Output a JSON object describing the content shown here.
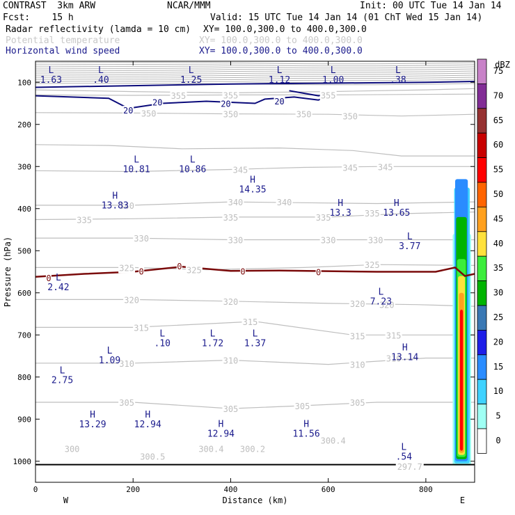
{
  "header": {
    "model": "CONTRAST  3km ARW",
    "org": "NCAR/MMM",
    "init": "Init: 00 UTC Tue 14 Jan 14",
    "fcst": "Fcst:    15 h",
    "valid": "Valid: 15 UTC Tue 14 Jan 14 (01 ChT Wed 15 Jan 14)",
    "field1": "Radar reflectivity (lamda = 10 cm)",
    "field1_xy": "XY= 100.0,300.0 to 400.0,300.0",
    "field2": "Potential temperature",
    "field2_xy": "XY= 100.0,300.0 to 400.0,300.0",
    "field3": "Horizontal wind speed",
    "field3_xy": "XY= 100.0,300.0 to 400.0,300.0"
  },
  "chart_data": {
    "type": "cross-section",
    "xlabel": "Distance (km)",
    "ylabel": "Pressure (hPa)",
    "x_ticks": [
      0,
      200,
      400,
      600,
      800
    ],
    "x_range": [
      0,
      900
    ],
    "y_ticks": [
      100,
      200,
      300,
      400,
      500,
      600,
      700,
      800,
      900,
      1000
    ],
    "y_range": [
      50,
      1050
    ],
    "west_label": "W",
    "east_label": "E",
    "colorbar": {
      "unit": "dBZ",
      "levels": [
        0,
        5,
        10,
        15,
        20,
        25,
        30,
        35,
        40,
        45,
        50,
        55,
        60,
        65,
        70,
        75
      ],
      "colors": [
        "#ffffff",
        "#9ffff4",
        "#3fd2ff",
        "#2a8cff",
        "#1e1ee8",
        "#3a78b4",
        "#00b400",
        "#3ced3c",
        "#ffe13c",
        "#ffa01e",
        "#ff6400",
        "#ff0000",
        "#c80000",
        "#963232",
        "#822d96",
        "#c882c8"
      ]
    },
    "theta_labels": [
      {
        "text": "355",
        "x": 293,
        "p": 131
      },
      {
        "text": "355",
        "x": 400,
        "p": 130
      },
      {
        "text": "355",
        "x": 600,
        "p": 130
      },
      {
        "text": "350",
        "x": 232,
        "p": 173
      },
      {
        "text": "350",
        "x": 400,
        "p": 175
      },
      {
        "text": "350",
        "x": 550,
        "p": 175
      },
      {
        "text": "350",
        "x": 645,
        "p": 180
      },
      {
        "text": "345",
        "x": 420,
        "p": 307
      },
      {
        "text": "345",
        "x": 645,
        "p": 302
      },
      {
        "text": "345",
        "x": 717,
        "p": 300
      },
      {
        "text": "340",
        "x": 187,
        "p": 392
      },
      {
        "text": "340",
        "x": 410,
        "p": 384
      },
      {
        "text": "340",
        "x": 510,
        "p": 384
      },
      {
        "text": "335",
        "x": 100,
        "p": 426
      },
      {
        "text": "335",
        "x": 400,
        "p": 420
      },
      {
        "text": "335",
        "x": 590,
        "p": 420
      },
      {
        "text": "335",
        "x": 690,
        "p": 410
      },
      {
        "text": "330",
        "x": 217,
        "p": 470
      },
      {
        "text": "330",
        "x": 410,
        "p": 474
      },
      {
        "text": "330",
        "x": 600,
        "p": 474
      },
      {
        "text": "330",
        "x": 697,
        "p": 474
      },
      {
        "text": "325",
        "x": 187,
        "p": 540
      },
      {
        "text": "325",
        "x": 325,
        "p": 545
      },
      {
        "text": "325",
        "x": 690,
        "p": 533
      },
      {
        "text": "320",
        "x": 197,
        "p": 616
      },
      {
        "text": "320",
        "x": 400,
        "p": 620
      },
      {
        "text": "320",
        "x": 660,
        "p": 625
      },
      {
        "text": "320",
        "x": 720,
        "p": 628
      },
      {
        "text": "315",
        "x": 217,
        "p": 682
      },
      {
        "text": "315",
        "x": 440,
        "p": 668
      },
      {
        "text": "315",
        "x": 660,
        "p": 702
      },
      {
        "text": "315",
        "x": 734,
        "p": 700
      },
      {
        "text": "310",
        "x": 187,
        "p": 767
      },
      {
        "text": "310",
        "x": 400,
        "p": 760
      },
      {
        "text": "310",
        "x": 660,
        "p": 770
      },
      {
        "text": "310",
        "x": 734,
        "p": 755
      },
      {
        "text": "305",
        "x": 187,
        "p": 860
      },
      {
        "text": "305",
        "x": 400,
        "p": 875
      },
      {
        "text": "305",
        "x": 547,
        "p": 868
      },
      {
        "text": "305",
        "x": 660,
        "p": 860
      },
      {
        "text": "300",
        "x": 75,
        "p": 970
      },
      {
        "text": "300.5",
        "x": 240,
        "p": 988
      },
      {
        "text": "300.4",
        "x": 360,
        "p": 970
      },
      {
        "text": "300.2",
        "x": 445,
        "p": 970
      },
      {
        "text": "300.4",
        "x": 610,
        "p": 950
      },
      {
        "text": "297.7",
        "x": 767,
        "p": 1012
      }
    ],
    "wind_labels": [
      {
        "text": "20",
        "x": 190,
        "p": 166
      },
      {
        "text": "20",
        "x": 250,
        "p": 147
      },
      {
        "text": "20",
        "x": 390,
        "p": 150
      },
      {
        "text": "20",
        "x": 500,
        "p": 144
      },
      {
        "text": "0",
        "x": 217,
        "p": 548
      },
      {
        "text": "0",
        "x": 295,
        "p": 536
      },
      {
        "text": "0",
        "x": 425,
        "p": 548
      },
      {
        "text": "0",
        "x": 580,
        "p": 550
      },
      {
        "text": "0",
        "x": 27,
        "p": 564
      }
    ],
    "extrema": [
      {
        "t": "L",
        "v": "1.63",
        "x": 32,
        "p": 85
      },
      {
        "t": "L",
        "v": ".40",
        "x": 134,
        "p": 85
      },
      {
        "t": "L",
        "v": "1.25",
        "x": 319,
        "p": 85
      },
      {
        "t": "L",
        "v": "1.12",
        "x": 500,
        "p": 85
      },
      {
        "t": "L",
        "v": "1.00",
        "x": 610,
        "p": 85
      },
      {
        "t": "L",
        "v": ".38",
        "x": 743,
        "p": 85
      },
      {
        "t": "L",
        "v": "10.81",
        "x": 207,
        "p": 297
      },
      {
        "t": "L",
        "v": "10.86",
        "x": 322,
        "p": 297
      },
      {
        "t": "H",
        "v": "14.35",
        "x": 445,
        "p": 345
      },
      {
        "t": "H",
        "v": "13.83",
        "x": 163,
        "p": 383
      },
      {
        "t": "H",
        "v": "13.3",
        "x": 625,
        "p": 400
      },
      {
        "t": "H",
        "v": "13.65",
        "x": 740,
        "p": 400
      },
      {
        "t": "L",
        "v": "3.77",
        "x": 767,
        "p": 480
      },
      {
        "t": "L",
        "v": "2.42",
        "x": 47,
        "p": 577
      },
      {
        "t": "L",
        "v": "7.23",
        "x": 708,
        "p": 611
      },
      {
        "t": "L",
        "v": ".10",
        "x": 260,
        "p": 710
      },
      {
        "t": "L",
        "v": "1.72",
        "x": 363,
        "p": 710
      },
      {
        "t": "L",
        "v": "1.37",
        "x": 450,
        "p": 710
      },
      {
        "t": "L",
        "v": "1.09",
        "x": 152,
        "p": 751
      },
      {
        "t": "H",
        "v": "13.14",
        "x": 757,
        "p": 743
      },
      {
        "t": "L",
        "v": "2.75",
        "x": 55,
        "p": 798
      },
      {
        "t": "H",
        "v": "13.29",
        "x": 117,
        "p": 903
      },
      {
        "t": "H",
        "v": "12.94",
        "x": 230,
        "p": 903
      },
      {
        "t": "H",
        "v": "12.94",
        "x": 380,
        "p": 925
      },
      {
        "t": "H",
        "v": "11.56",
        "x": 555,
        "p": 925
      },
      {
        "t": "L",
        "v": ".54",
        "x": 755,
        "p": 980
      }
    ]
  }
}
